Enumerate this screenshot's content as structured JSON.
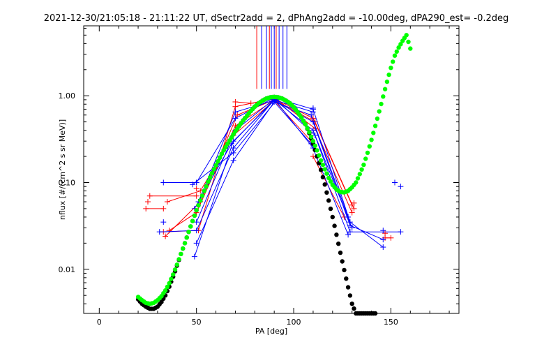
{
  "chart_data": {
    "type": "scatter",
    "title": "2021-12-30/21:05:18 - 21:11:22 UT, dSectr2add = 2, dPhAng2add = -10.00deg, dPA290_est=  -0.2deg",
    "xlabel": "PA [deg]",
    "ylabel": "nflux [#/(cm^2 s sr MeV)]",
    "xlim": [
      -8,
      185
    ],
    "ylim": [
      0.0031,
      6.4
    ],
    "yscale": "log",
    "grid": false,
    "x_ticks": [
      {
        "value": 0,
        "label": "0"
      },
      {
        "value": 50,
        "label": "50"
      },
      {
        "value": 100,
        "label": "100"
      },
      {
        "value": 150,
        "label": "150"
      }
    ],
    "y_ticks": [
      {
        "value": 0.01,
        "label": "0.01"
      },
      {
        "value": 0.1,
        "label": "0.10"
      },
      {
        "value": 1.0,
        "label": "1.00"
      }
    ],
    "colors": {
      "red": "#ff0000",
      "blue": "#0000ff",
      "black": "#000000",
      "green": "#00ff00"
    },
    "vertical_markers": {
      "y_top": 6.4,
      "y_bottom": 1.2,
      "red_x": [
        81,
        87.5,
        91
      ],
      "blue_x": [
        83.5,
        86,
        88.5,
        90,
        92.5,
        94.5,
        96.5
      ]
    },
    "green_fit": {
      "name": "",
      "x": [
        20,
        22,
        24,
        26,
        28,
        30,
        32,
        34,
        36,
        38,
        40,
        42,
        44,
        46,
        48,
        50,
        52,
        54,
        56,
        58,
        60,
        62,
        64,
        66,
        68,
        70,
        72,
        74,
        76,
        78,
        80,
        82,
        84,
        86,
        88,
        90,
        92,
        94,
        96,
        98,
        100,
        102,
        104,
        106,
        108,
        110,
        112,
        114,
        116,
        118,
        120,
        122,
        124,
        126,
        128,
        130,
        132,
        134,
        136,
        138,
        140,
        142,
        144,
        146,
        148,
        150,
        152,
        154,
        156,
        158,
        160
      ],
      "y": [
        0.0048,
        0.0044,
        0.0041,
        0.004,
        0.0041,
        0.0044,
        0.0049,
        0.0057,
        0.0069,
        0.0087,
        0.0113,
        0.015,
        0.02,
        0.027,
        0.036,
        0.048,
        0.062,
        0.08,
        0.102,
        0.128,
        0.158,
        0.194,
        0.235,
        0.28,
        0.33,
        0.39,
        0.45,
        0.52,
        0.59,
        0.67,
        0.75,
        0.82,
        0.88,
        0.93,
        0.96,
        0.97,
        0.96,
        0.93,
        0.88,
        0.82,
        0.74,
        0.65,
        0.56,
        0.47,
        0.38,
        0.3,
        0.235,
        0.18,
        0.142,
        0.113,
        0.094,
        0.083,
        0.078,
        0.077,
        0.08,
        0.088,
        0.1,
        0.125,
        0.16,
        0.22,
        0.31,
        0.45,
        0.66,
        0.98,
        1.45,
        2.1,
        2.9,
        3.6,
        4.3,
        5.0,
        3.5
      ]
    },
    "black_fit": {
      "name": "",
      "x": [
        20,
        22,
        24,
        26,
        28,
        30,
        32,
        34,
        36,
        38,
        40,
        42,
        44,
        46,
        48,
        50,
        52,
        54,
        56,
        58,
        60,
        62,
        64,
        66,
        68,
        70,
        72,
        74,
        76,
        78,
        80,
        82,
        84,
        86,
        88,
        90,
        92,
        94,
        96,
        98,
        100,
        102,
        104,
        106,
        108,
        110,
        112,
        114,
        116,
        118,
        120,
        122,
        124,
        126,
        128,
        130,
        132,
        134,
        136,
        138,
        140,
        142
      ],
      "y": [
        0.0045,
        0.004,
        0.0037,
        0.0035,
        0.0035,
        0.0037,
        0.0042,
        0.005,
        0.0063,
        0.0082,
        0.011,
        0.015,
        0.02,
        0.027,
        0.036,
        0.048,
        0.062,
        0.08,
        0.102,
        0.128,
        0.158,
        0.194,
        0.235,
        0.28,
        0.33,
        0.39,
        0.45,
        0.52,
        0.59,
        0.67,
        0.75,
        0.82,
        0.88,
        0.93,
        0.96,
        0.97,
        0.96,
        0.93,
        0.88,
        0.82,
        0.74,
        0.65,
        0.56,
        0.47,
        0.37,
        0.28,
        0.2,
        0.14,
        0.095,
        0.062,
        0.04,
        0.025,
        0.0155,
        0.0098,
        0.0062,
        0.004,
        0.0031,
        0.0031,
        0.0031,
        0.0031,
        0.0031,
        0.0031
      ]
    },
    "scan_lines": [
      {
        "color": "red",
        "x": [
          24,
          33
        ],
        "y": [
          0.05,
          0.05
        ]
      },
      {
        "color": "red",
        "x": [
          26,
          50
        ],
        "y": [
          0.07,
          0.07
        ]
      },
      {
        "color": "red",
        "x": [
          33,
          51,
          70,
          90,
          110,
          130
        ],
        "y": [
          0.027,
          0.028,
          0.75,
          0.93,
          0.55,
          0.055
        ]
      },
      {
        "color": "red",
        "x": [
          34,
          52,
          71,
          90,
          111,
          131
        ],
        "y": [
          0.024,
          0.06,
          0.6,
          0.9,
          0.5,
          0.05
        ]
      },
      {
        "color": "red",
        "x": [
          35,
          52,
          69,
          90,
          109
        ],
        "y": [
          0.06,
          0.08,
          0.35,
          0.88,
          0.3
        ]
      },
      {
        "color": "red",
        "x": [
          36,
          50,
          70,
          91,
          111,
          130
        ],
        "y": [
          0.028,
          0.045,
          0.45,
          0.92,
          0.42,
          0.045
        ]
      },
      {
        "color": "red",
        "x": [
          70,
          78
        ],
        "y": [
          0.85,
          0.82
        ]
      },
      {
        "color": "red",
        "x": [
          110,
          126
        ],
        "y": [
          0.2,
          0.04
        ]
      },
      {
        "color": "red",
        "x": [
          147,
          150
        ],
        "y": [
          0.023,
          0.023
        ]
      },
      {
        "color": "blue",
        "x": [
          33,
          50
        ],
        "y": [
          0.1,
          0.1
        ]
      },
      {
        "color": "blue",
        "x": [
          31,
          50,
          69,
          90,
          110,
          129,
          155
        ],
        "y": [
          0.027,
          0.028,
          0.25,
          0.9,
          0.4,
          0.027,
          0.027
        ]
      },
      {
        "color": "blue",
        "x": [
          50,
          70,
          90,
          110,
          129,
          146
        ],
        "y": [
          0.1,
          0.55,
          0.95,
          0.7,
          0.035,
          0.018
        ]
      },
      {
        "color": "blue",
        "x": [
          50,
          69,
          90,
          109,
          128
        ],
        "y": [
          0.02,
          0.18,
          0.85,
          0.28,
          0.025
        ]
      },
      {
        "color": "blue",
        "x": [
          49,
          69,
          90,
          110,
          129,
          146
        ],
        "y": [
          0.014,
          0.3,
          0.88,
          0.5,
          0.032,
          0.022
        ]
      },
      {
        "color": "blue",
        "x": [
          51,
          70,
          91,
          111,
          130
        ],
        "y": [
          0.06,
          0.65,
          0.9,
          0.35,
          0.03
        ]
      },
      {
        "color": "blue",
        "x": [
          49,
          68,
          89,
          109,
          128
        ],
        "y": [
          0.05,
          0.28,
          0.86,
          0.6,
          0.04
        ]
      },
      {
        "color": "blue",
        "x": [
          50,
          70,
          90,
          110
        ],
        "y": [
          0.035,
          0.4,
          0.92,
          0.25
        ]
      },
      {
        "color": "blue",
        "x": [
          48,
          69,
          91,
          110
        ],
        "y": [
          0.095,
          0.22,
          0.88,
          0.65
        ]
      }
    ],
    "points": [
      {
        "color": "red",
        "x": 25,
        "y": 0.06
      },
      {
        "color": "red",
        "x": 147,
        "y": 0.026
      },
      {
        "color": "red",
        "x": 131,
        "y": 0.058
      },
      {
        "color": "red",
        "x": 50,
        "y": 0.085
      },
      {
        "color": "blue",
        "x": 33,
        "y": 0.035
      },
      {
        "color": "blue",
        "x": 152,
        "y": 0.1
      },
      {
        "color": "blue",
        "x": 155,
        "y": 0.09
      },
      {
        "color": "blue",
        "x": 146,
        "y": 0.028
      },
      {
        "color": "blue",
        "x": 110,
        "y": 0.72
      }
    ]
  }
}
